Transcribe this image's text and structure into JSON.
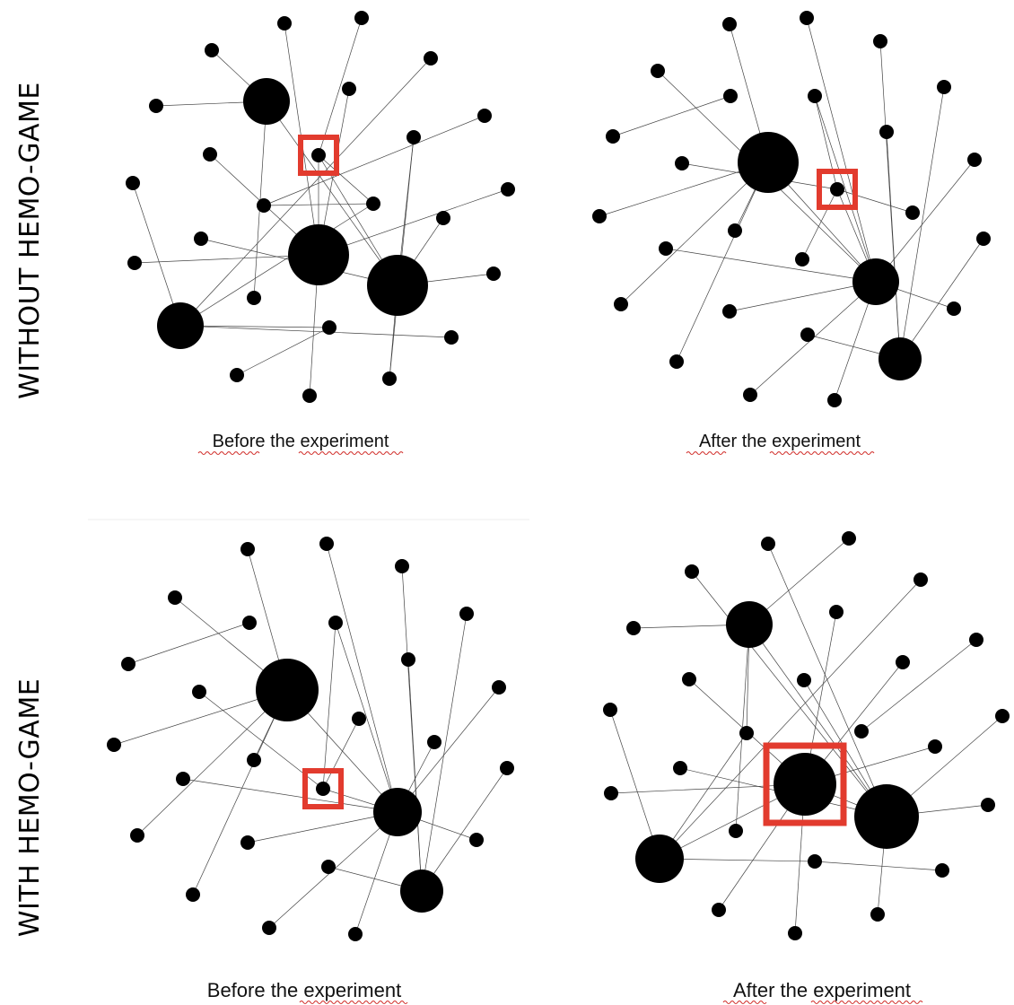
{
  "row_labels": {
    "top": "WITHOUT HEMO-GAME",
    "bottom": "WITH HEMO-GAME"
  },
  "colors": {
    "node": "#000000",
    "edge": "#444444",
    "highlight": "#e23b2e",
    "spellcheck_squiggle": "#d2302c"
  },
  "panels": [
    {
      "id": "top-before",
      "caption": "Before the experiment",
      "highlighted_node": "A2"
    },
    {
      "id": "top-after",
      "caption": "After the experiment",
      "highlighted_node": "B2"
    },
    {
      "id": "bottom-before",
      "caption": "Before the experiment",
      "highlighted_node": "C2"
    },
    {
      "id": "bottom-after",
      "caption": "After the experiment",
      "highlighted_node": "D1"
    }
  ]
}
